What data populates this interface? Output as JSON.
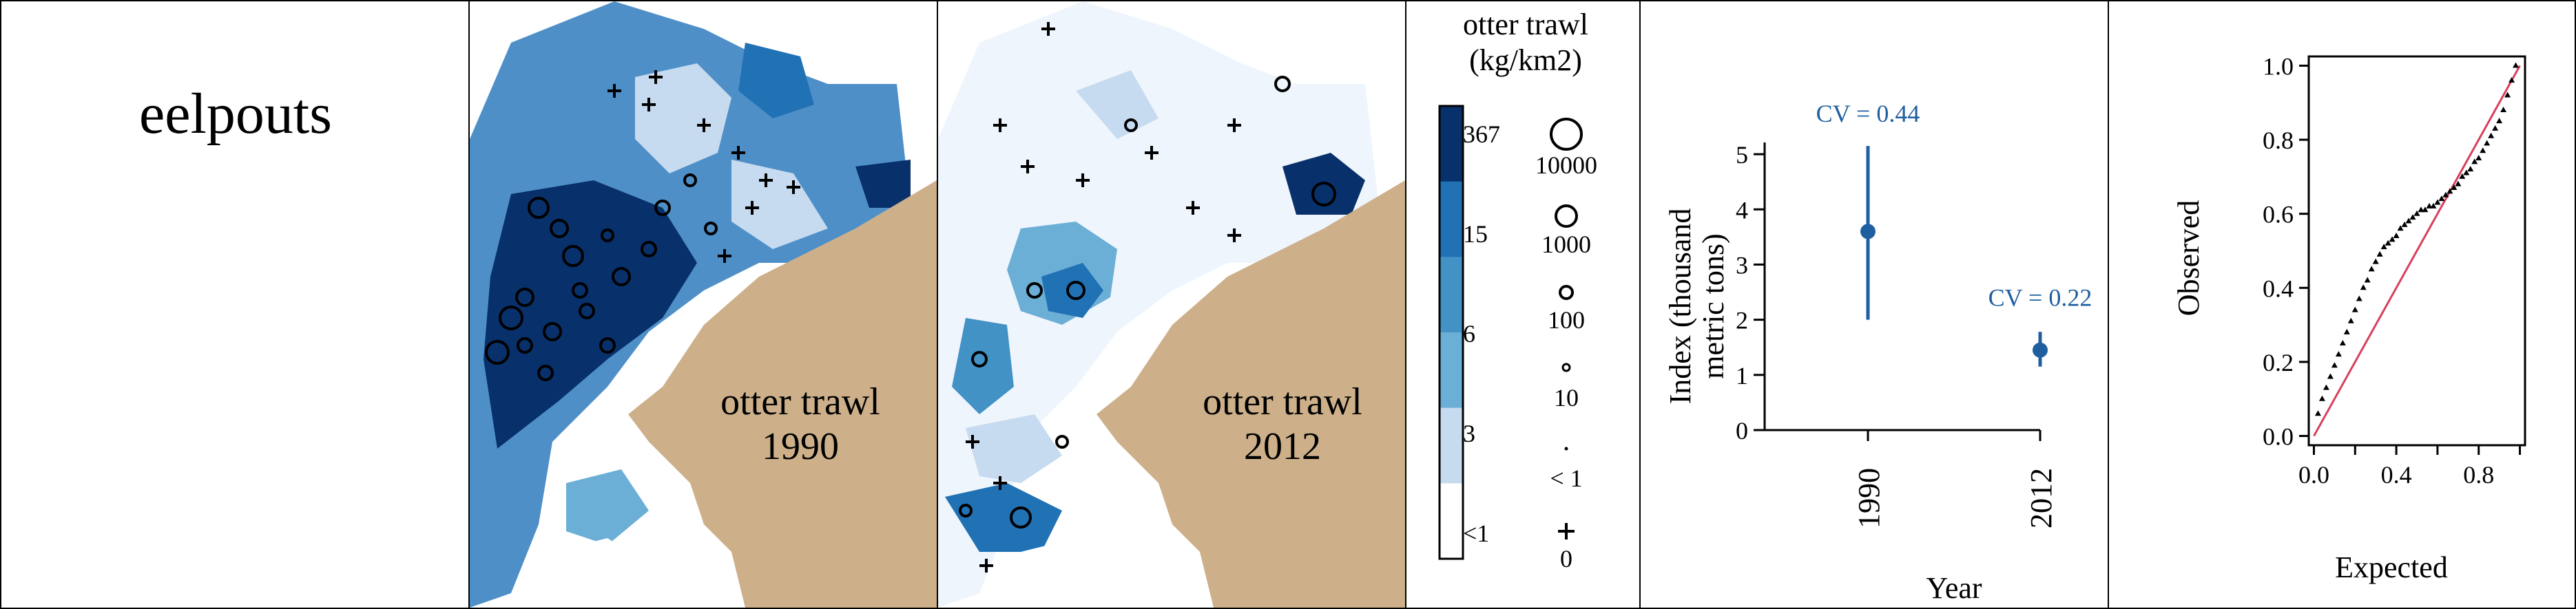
{
  "species": "eelpouts",
  "maps": [
    {
      "survey": "otter trawl",
      "year": "1990"
    },
    {
      "survey": "otter trawl",
      "year": "2012"
    }
  ],
  "legend": {
    "title_line1": "otter trawl",
    "title_line2": "(kg/km2)",
    "color_classes": [
      "367",
      "15",
      "6",
      "3",
      "<1"
    ],
    "colors": [
      "#08306b",
      "#2171b5",
      "#4292c6",
      "#6baed6",
      "#c6dbef",
      "#ffffff"
    ],
    "circle_sizes": [
      "10000",
      "1000",
      "100",
      "10",
      "< 1"
    ],
    "zero_label": "0"
  },
  "colors": {
    "land": "#cdb08a",
    "point": "#1f5fa0",
    "reference_line": "#d6405a"
  },
  "chart_data": [
    {
      "type": "scatter",
      "title": "",
      "xlabel": "Year",
      "ylabel_line1": "Index (thousand",
      "ylabel_line2": "metric tons)",
      "categories": [
        "1990",
        "2012"
      ],
      "values": [
        3.6,
        1.45
      ],
      "ci_low": [
        2.0,
        1.15
      ],
      "ci_high": [
        5.15,
        1.78
      ],
      "annotations": [
        "CV = 0.44",
        "CV = 0.22"
      ],
      "ylim": [
        0,
        5.5
      ],
      "yticks": [
        "0",
        "1",
        "2",
        "3",
        "4",
        "5"
      ]
    },
    {
      "type": "scatter",
      "title": "",
      "xlabel": "Expected",
      "ylabel": "Observed",
      "xlim": [
        0,
        1
      ],
      "ylim": [
        0,
        1
      ],
      "xticks": [
        "0.0",
        "0.4",
        "0.8"
      ],
      "yticks": [
        "0.0",
        "0.2",
        "0.4",
        "0.6",
        "0.8",
        "1.0"
      ],
      "reference_line": "y = x",
      "series": [
        {
          "x": [
            0.02,
            0.04,
            0.06,
            0.08,
            0.1,
            0.12,
            0.14,
            0.16,
            0.18,
            0.2,
            0.22,
            0.24,
            0.26,
            0.28,
            0.3,
            0.32,
            0.34,
            0.36,
            0.38,
            0.4,
            0.42,
            0.44,
            0.46,
            0.48,
            0.5,
            0.52,
            0.54,
            0.56,
            0.58,
            0.6,
            0.62,
            0.64,
            0.66,
            0.68,
            0.7,
            0.72,
            0.74,
            0.76,
            0.78,
            0.8,
            0.82,
            0.84,
            0.86,
            0.88,
            0.9,
            0.92,
            0.94,
            0.96,
            0.98
          ],
          "y": [
            0.06,
            0.1,
            0.13,
            0.16,
            0.19,
            0.22,
            0.25,
            0.28,
            0.31,
            0.34,
            0.37,
            0.4,
            0.42,
            0.45,
            0.47,
            0.49,
            0.51,
            0.52,
            0.53,
            0.54,
            0.56,
            0.57,
            0.58,
            0.59,
            0.6,
            0.61,
            0.61,
            0.62,
            0.62,
            0.63,
            0.64,
            0.65,
            0.66,
            0.67,
            0.68,
            0.7,
            0.71,
            0.72,
            0.74,
            0.75,
            0.77,
            0.79,
            0.81,
            0.83,
            0.85,
            0.88,
            0.92,
            0.96,
            1.0
          ]
        }
      ]
    }
  ]
}
